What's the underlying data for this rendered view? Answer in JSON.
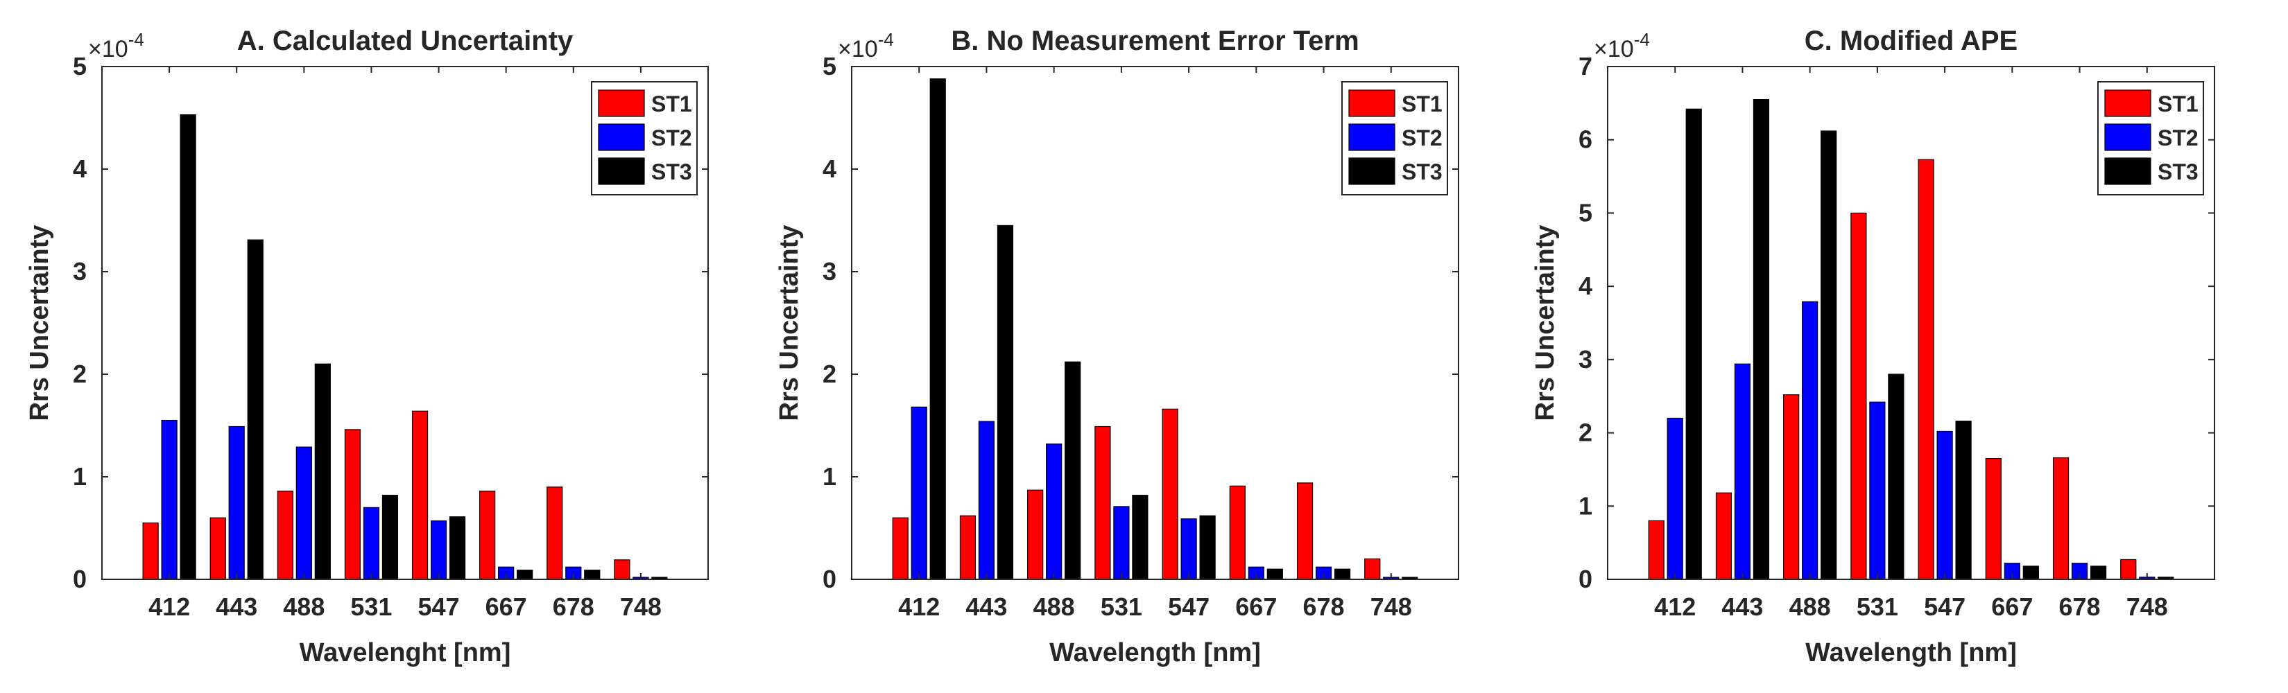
{
  "chart_data": [
    {
      "type": "bar",
      "title": "A. Calculated Uncertainty",
      "xlabel": "Wavelenght [nm]",
      "ylabel": "Rrs Uncertainty",
      "exponent_base": "×10",
      "exponent_power": "-4",
      "categories": [
        "412",
        "443",
        "488",
        "531",
        "547",
        "667",
        "678",
        "748"
      ],
      "ylim": [
        0,
        5
      ],
      "yticks": [
        "0",
        "1",
        "2",
        "3",
        "4",
        "5"
      ],
      "legend_position": "top-right",
      "series": [
        {
          "name": "ST1",
          "color": "#ff0000",
          "values": [
            0.55,
            0.6,
            0.86,
            1.46,
            1.64,
            0.86,
            0.9,
            0.19
          ]
        },
        {
          "name": "ST2",
          "color": "#0000ff",
          "values": [
            1.55,
            1.49,
            1.29,
            0.7,
            0.57,
            0.12,
            0.12,
            0.02
          ]
        },
        {
          "name": "ST3",
          "color": "#000000",
          "values": [
            4.53,
            3.31,
            2.1,
            0.82,
            0.61,
            0.09,
            0.09,
            0.02
          ]
        }
      ]
    },
    {
      "type": "bar",
      "title": "B. No Measurement Error Term",
      "xlabel": "Wavelength [nm]",
      "ylabel": "Rrs Uncertainty",
      "exponent_base": "×10",
      "exponent_power": "-4",
      "categories": [
        "412",
        "443",
        "488",
        "531",
        "547",
        "667",
        "678",
        "748"
      ],
      "ylim": [
        0,
        5
      ],
      "yticks": [
        "0",
        "1",
        "2",
        "3",
        "4",
        "5"
      ],
      "legend_position": "top-right",
      "series": [
        {
          "name": "ST1",
          "color": "#ff0000",
          "values": [
            0.6,
            0.62,
            0.87,
            1.49,
            1.66,
            0.91,
            0.94,
            0.2
          ]
        },
        {
          "name": "ST2",
          "color": "#0000ff",
          "values": [
            1.68,
            1.54,
            1.32,
            0.71,
            0.59,
            0.12,
            0.12,
            0.02
          ]
        },
        {
          "name": "ST3",
          "color": "#000000",
          "values": [
            4.88,
            3.45,
            2.12,
            0.82,
            0.62,
            0.1,
            0.1,
            0.02
          ]
        }
      ]
    },
    {
      "type": "bar",
      "title": "C. Modified APE",
      "xlabel": "Wavelength [nm]",
      "ylabel": "Rrs Uncertainty",
      "exponent_base": "×10",
      "exponent_power": "-4",
      "categories": [
        "412",
        "443",
        "488",
        "531",
        "547",
        "667",
        "678",
        "748"
      ],
      "ylim": [
        0,
        7
      ],
      "yticks": [
        "0",
        "1",
        "2",
        "3",
        "4",
        "5",
        "6",
        "7"
      ],
      "legend_position": "top-right",
      "series": [
        {
          "name": "ST1",
          "color": "#ff0000",
          "values": [
            0.8,
            1.18,
            2.52,
            5.0,
            5.73,
            1.65,
            1.66,
            0.27
          ]
        },
        {
          "name": "ST2",
          "color": "#0000ff",
          "values": [
            2.2,
            2.94,
            3.79,
            2.42,
            2.02,
            0.22,
            0.22,
            0.03
          ]
        },
        {
          "name": "ST3",
          "color": "#000000",
          "values": [
            6.42,
            6.55,
            6.12,
            2.8,
            2.16,
            0.18,
            0.18,
            0.03
          ]
        }
      ]
    }
  ]
}
